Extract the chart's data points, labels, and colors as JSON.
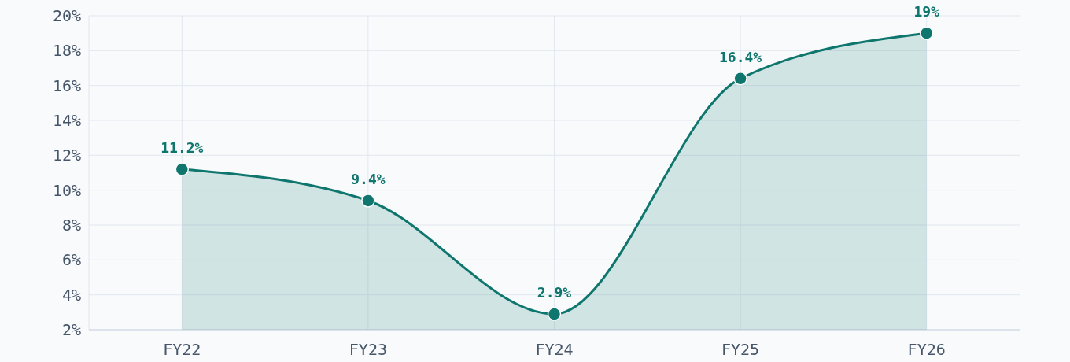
{
  "chart_data": {
    "type": "area",
    "categories": [
      "FY22",
      "FY23",
      "FY24",
      "FY25",
      "FY26"
    ],
    "series": [
      {
        "color": "#0f766e",
        "values": [
          11.2,
          9.4,
          2.9,
          16.4,
          19
        ],
        "value_labels": [
          "11.2%",
          "9.4%",
          "2.9%",
          "16.4%",
          "19%"
        ]
      }
    ],
    "ylim": [
      2,
      20
    ],
    "yticks": [
      {
        "value": 2,
        "label": "2%"
      },
      {
        "value": 4,
        "label": "4%"
      },
      {
        "value": 6,
        "label": "6%"
      },
      {
        "value": 8,
        "label": "8%"
      },
      {
        "value": 10,
        "label": "10%"
      },
      {
        "value": 12,
        "label": "12%"
      },
      {
        "value": 14,
        "label": "14%"
      },
      {
        "value": 16,
        "label": "16%"
      },
      {
        "value": 18,
        "label": "18%"
      },
      {
        "value": 20,
        "label": "20%"
      }
    ],
    "grid": true,
    "marker": "circle",
    "line_style": "solid"
  }
}
